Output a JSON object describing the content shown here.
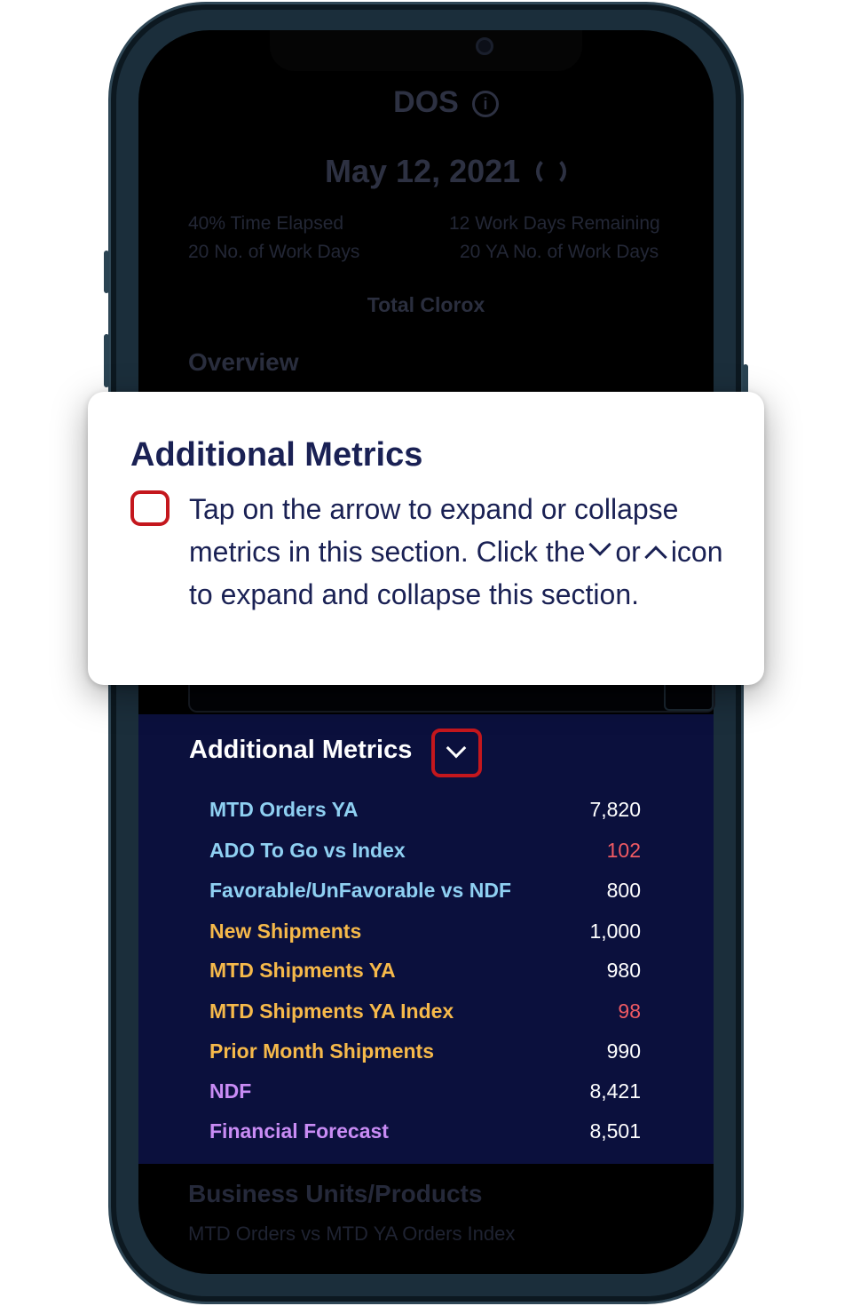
{
  "header": {
    "title": "DOS",
    "date": "May 12, 2021"
  },
  "stats": {
    "time_elapsed": "40% Time Elapsed",
    "work_days_remaining": "12 Work Days Remaining",
    "work_days": "20 No. of Work Days",
    "ya_work_days": "20 YA No. of Work Days"
  },
  "brand": "Total Clorox",
  "overview_title": "Overview",
  "tooltip": {
    "title": "Additional Metrics",
    "text_1": "Tap on the arrow to expand or collapse metrics in this section. Click the",
    "text_or": "or",
    "text_2": "icon to expand and collapse this section."
  },
  "additional_metrics": {
    "title": "Additional Metrics",
    "rows": [
      {
        "label": "MTD Orders YA",
        "value": "7,820",
        "label_color": "#8fd0f2",
        "value_color": "#ffffff"
      },
      {
        "label": "ADO To Go vs Index",
        "value": "102",
        "label_color": "#8fd0f2",
        "value_color": "#f05a63"
      },
      {
        "label": "Favorable/UnFavorable vs NDF",
        "value": "800",
        "label_color": "#8fd0f2",
        "value_color": "#ffffff"
      },
      {
        "label": "New Shipments",
        "value": "1,000",
        "label_color": "#f6b94a",
        "value_color": "#ffffff"
      },
      {
        "label": "MTD Shipments YA",
        "value": "980",
        "label_color": "#f6b94a",
        "value_color": "#ffffff"
      },
      {
        "label": "MTD Shipments YA Index",
        "value": "98",
        "label_color": "#f6b94a",
        "value_color": "#f05a63"
      },
      {
        "label": "Prior Month Shipments",
        "value": "990",
        "label_color": "#f6b94a",
        "value_color": "#ffffff"
      },
      {
        "label": "NDF",
        "value": "8,421",
        "label_color": "#c98cf5",
        "value_color": "#ffffff"
      },
      {
        "label": "Financial Forecast",
        "value": "8,501",
        "label_color": "#c98cf5",
        "value_color": "#ffffff"
      }
    ]
  },
  "business_units": {
    "title": "Business Units/Products",
    "subtitle": "MTD Orders vs MTD YA Orders Index"
  },
  "colors": {
    "accent_red": "#c4171d",
    "navy": "#1a2154",
    "panel_bg": "#0b103d"
  }
}
